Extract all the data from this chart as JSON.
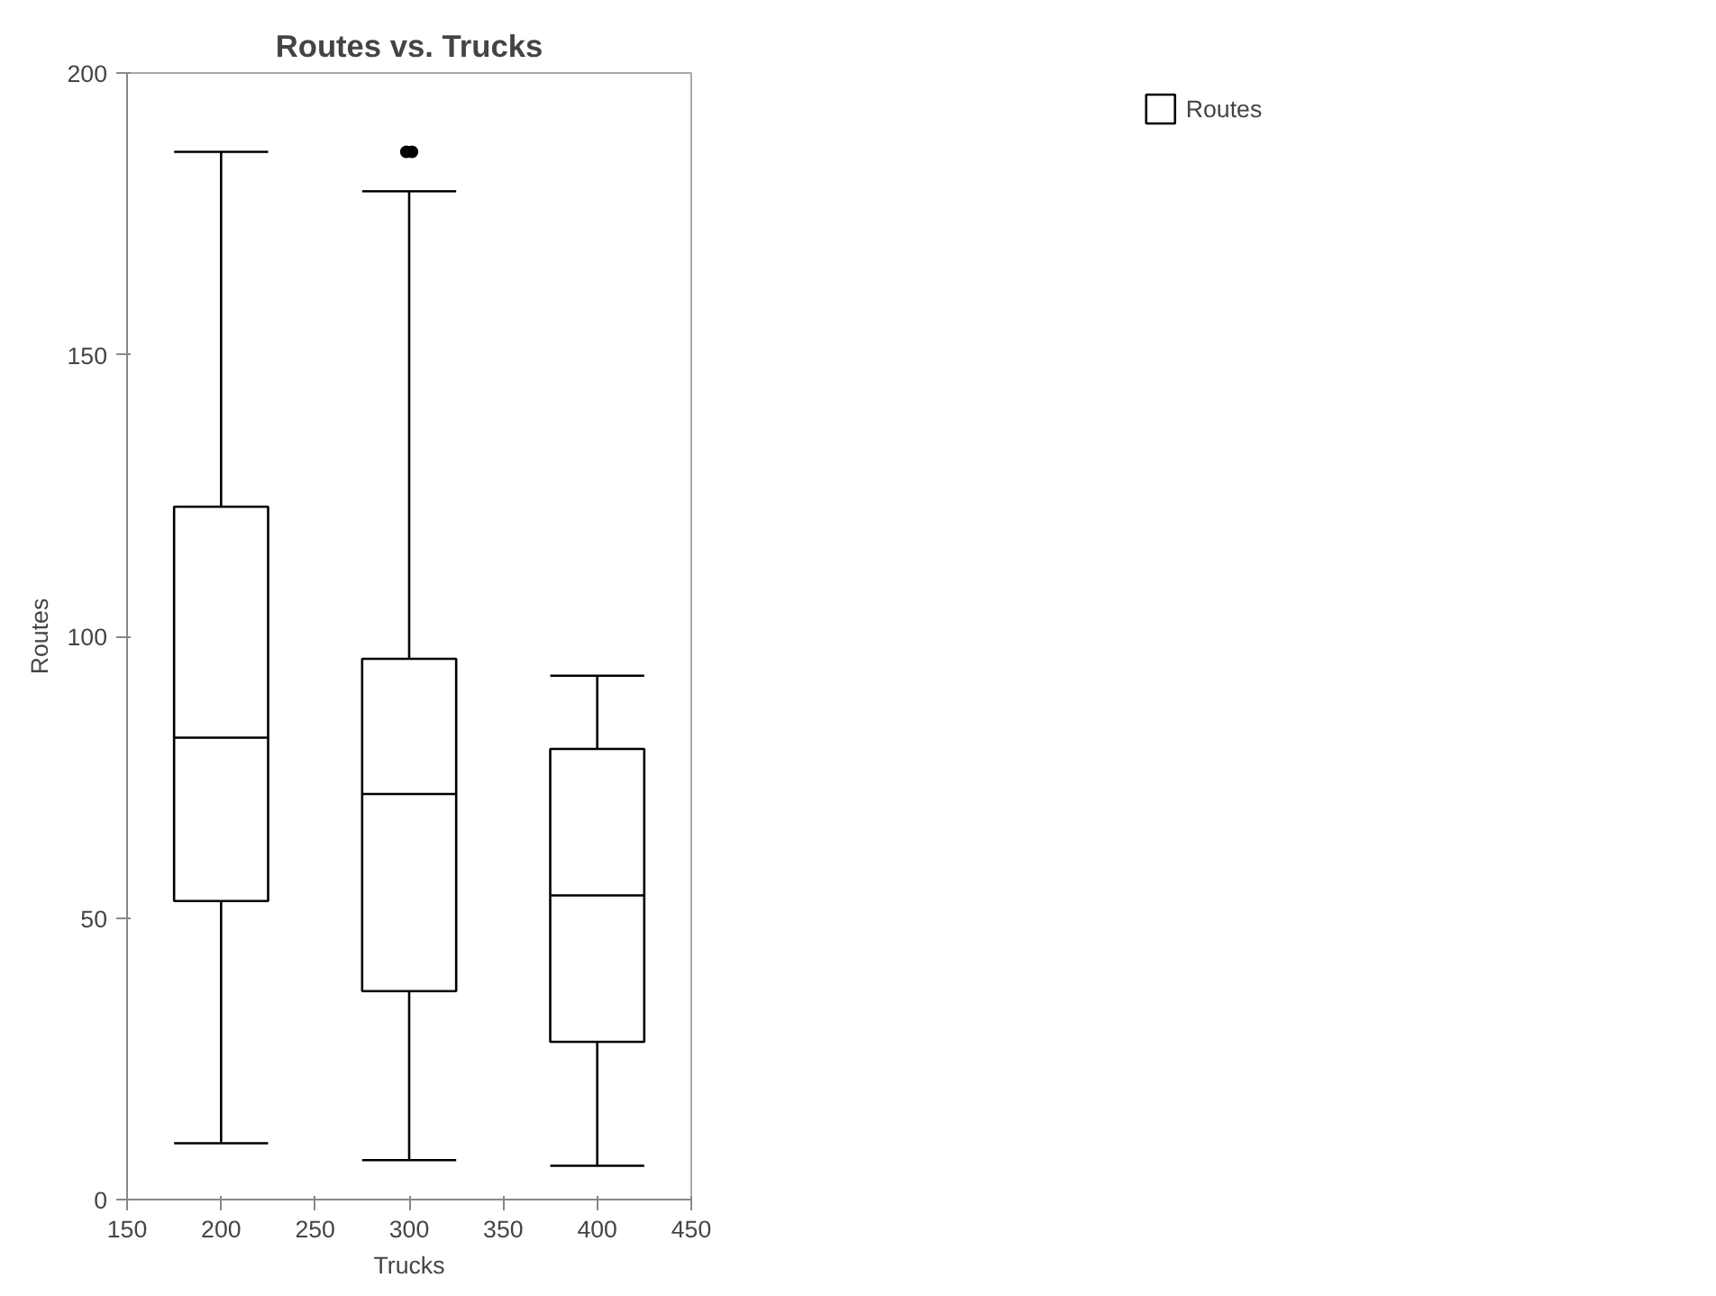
{
  "chart_data": {
    "type": "box",
    "title": "Routes vs. Trucks",
    "xlabel": "Trucks",
    "ylabel": "Routes",
    "x": [
      200,
      300,
      400
    ],
    "series": [
      {
        "name": "Routes",
        "color": "#000000",
        "boxes": [
          {
            "low": 10,
            "q1": 53,
            "median": 82,
            "q3": 123,
            "high": 186
          },
          {
            "low": 7,
            "q1": 37,
            "median": 72,
            "q3": 96,
            "high": 179,
            "outliers": [
              186,
              186
            ]
          },
          {
            "low": 6,
            "q1": 28,
            "median": 54,
            "q3": 80,
            "high": 93
          }
        ]
      }
    ],
    "xlim": [
      150,
      450
    ],
    "xticks": [
      150,
      200,
      250,
      300,
      350,
      400,
      450
    ],
    "ylim": [
      0,
      200
    ],
    "yticks": [
      0,
      50,
      100,
      150,
      200
    ],
    "grid": false,
    "legend": "top right"
  }
}
